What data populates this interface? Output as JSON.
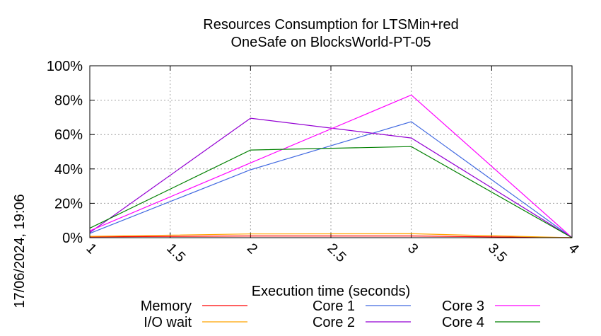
{
  "chart_data": {
    "type": "line",
    "title_lines": [
      "Resources Consumption for LTSMin+red",
      "OneSafe on BlocksWorld-PT-05"
    ],
    "xlabel": "Execution time (seconds)",
    "ylabel": "",
    "side_label": "17/06/2024, 19:06",
    "xlim": [
      1,
      4
    ],
    "ylim": [
      0,
      100
    ],
    "x_ticks": [
      1,
      1.5,
      2,
      2.5,
      3,
      3.5,
      4
    ],
    "x_tick_labels": [
      "1",
      "1.5",
      "2",
      "2.5",
      "3",
      "3.5",
      "4"
    ],
    "y_ticks": [
      0,
      20,
      40,
      60,
      80,
      100
    ],
    "y_tick_labels": [
      "0%",
      "20%",
      "40%",
      "60%",
      "80%",
      "100%"
    ],
    "grid": true,
    "legend_position": "bottom",
    "x": [
      1,
      2,
      3,
      4
    ],
    "series": [
      {
        "name": "Memory",
        "color": "#ff0000",
        "values": [
          0.5,
          1.0,
          1.0,
          0
        ]
      },
      {
        "name": "I/O wait",
        "color": "#ffa500",
        "values": [
          0.8,
          2.2,
          2.3,
          0
        ]
      },
      {
        "name": "Core 1",
        "color": "#4169e1",
        "values": [
          2.5,
          39.5,
          67.5,
          0
        ]
      },
      {
        "name": "Core 2",
        "color": "#9400d3",
        "values": [
          3.0,
          69.5,
          58.0,
          0
        ]
      },
      {
        "name": "Core 3",
        "color": "#ff00ff",
        "values": [
          4.0,
          43.5,
          83.0,
          0
        ]
      },
      {
        "name": "Core 4",
        "color": "#008000",
        "values": [
          5.5,
          51.0,
          53.0,
          0
        ]
      }
    ]
  }
}
